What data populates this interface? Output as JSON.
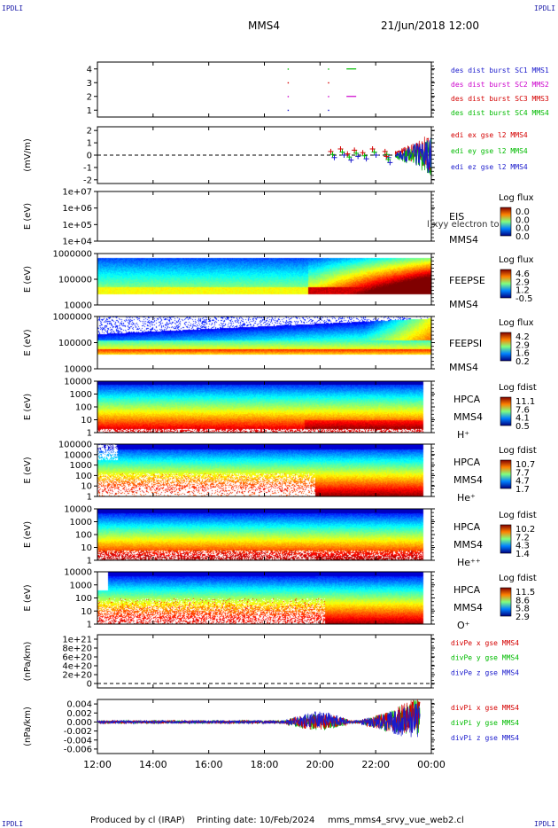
{
  "header": {
    "corner_label": "IPDLI",
    "title": "MMS4",
    "date": "21/Jun/2018 12:00"
  },
  "footer": {
    "produced": "Produced by cl (IRAP)",
    "printing": "Printing date: 10/Feb/2024",
    "file": "mms_mms4_srvy_vue_web2.cl"
  },
  "chart_data": {
    "type": "heatmap",
    "x_axis": {
      "range": [
        "12:00",
        "00:00"
      ],
      "ticks": [
        "12:00",
        "14:00",
        "16:00",
        "18:00",
        "20:00",
        "22:00",
        "00:00"
      ]
    },
    "panels": [
      {
        "id": "burst",
        "kind": "markers",
        "yticks": [
          "1",
          "2",
          "3",
          "4"
        ],
        "ylim": [
          0.5,
          4.5
        ],
        "ylabel": "",
        "legend": [
          {
            "text": "des dist burst SC1 MMS1",
            "color": "#1a1acc"
          },
          {
            "text": "des dist burst SC2 MMS2",
            "color": "#cc00cc"
          },
          {
            "text": "des dist burst SC3 MMS3",
            "color": "#d40000"
          },
          {
            "text": "des dist burst SC4 MMS4",
            "color": "#00bb00"
          }
        ],
        "points": [
          {
            "x": 18.85,
            "y": 1,
            "c": 0
          },
          {
            "x": 20.3,
            "y": 1,
            "c": 0
          },
          {
            "x": 18.85,
            "y": 2,
            "c": 1
          },
          {
            "x": 20.3,
            "y": 2,
            "c": 1
          },
          {
            "x": 18.85,
            "y": 3,
            "c": 2
          },
          {
            "x": 20.3,
            "y": 3,
            "c": 2
          },
          {
            "x": 18.85,
            "y": 4,
            "c": 3
          },
          {
            "x": 20.3,
            "y": 4,
            "c": 3
          }
        ],
        "segments": [
          {
            "x0": 20.95,
            "x1": 21.3,
            "y": 2,
            "c": 1
          },
          {
            "x0": 20.95,
            "x1": 21.3,
            "y": 4,
            "c": 3
          }
        ]
      },
      {
        "id": "edi",
        "kind": "field",
        "ylabel": "(mV/m)",
        "yticks": [
          "-2",
          "-1",
          "0",
          "1",
          "2"
        ],
        "ylim": [
          -2.3,
          2.3
        ],
        "legend": [
          {
            "text": "edi ex gse l2 MMS4",
            "color": "#d40000"
          },
          {
            "text": "edi ey gse l2 MMS4",
            "color": "#00bb00"
          },
          {
            "text": "edi ez gse l2 MMS4",
            "color": "#1a1acc"
          }
        ],
        "crosses": [
          {
            "x": 20.45,
            "y": 0.3
          },
          {
            "x": 20.8,
            "y": 0.5
          },
          {
            "x": 21.05,
            "y": 0.1
          },
          {
            "x": 21.3,
            "y": 0.4
          },
          {
            "x": 21.6,
            "y": 0.2
          },
          {
            "x": 21.95,
            "y": 0.5
          },
          {
            "x": 22.4,
            "y": 0.3
          },
          {
            "x": 22.45,
            "y": -0.1
          }
        ],
        "dashed_zero": true
      },
      {
        "id": "eis",
        "kind": "empty_spec",
        "ylabel": "E (eV)",
        "yticks": [
          "1e+04",
          "1e+05",
          "1e+06",
          "1e+07"
        ],
        "labels": [
          "EIS",
          "MMS4"
        ],
        "overlay": "l)xyy electron to",
        "cb_title": "Log flux",
        "cb_ticks": [
          "0.0",
          "0.0",
          "0.0",
          "0.0"
        ]
      },
      {
        "id": "feepse",
        "kind": "spectrogram",
        "ylabel": "E (eV)",
        "yticks": [
          "10000",
          "100000",
          "1000000"
        ],
        "labels": [
          "FEEPSE",
          "MMS4"
        ],
        "cb_title": "Log flux",
        "cb_ticks": [
          "4.6",
          "2.9",
          "1.2",
          "-0.5"
        ]
      },
      {
        "id": "feepsi",
        "kind": "spectrogram",
        "ylabel": "E (eV)",
        "yticks": [
          "10000",
          "100000",
          "1000000"
        ],
        "labels": [
          "FEEPSI",
          "MMS4"
        ],
        "cb_title": "Log flux",
        "cb_ticks": [
          "4.2",
          "2.9",
          "1.6",
          "0.2"
        ]
      },
      {
        "id": "hpca_h",
        "kind": "spectrogram",
        "ylabel": "E (eV)",
        "yticks": [
          "1",
          "10",
          "100",
          "1000",
          "10000"
        ],
        "labels": [
          "HPCA",
          "MMS4",
          "H⁺"
        ],
        "cb_title": "Log fdist",
        "cb_ticks": [
          "11.1",
          "7.6",
          "4.1",
          "0.5"
        ]
      },
      {
        "id": "hpca_he",
        "kind": "spectrogram",
        "ylabel": "E (eV)",
        "yticks": [
          "1",
          "10",
          "100",
          "1000",
          "10000",
          "100000"
        ],
        "labels": [
          "HPCA",
          "MMS4",
          "He⁺"
        ],
        "cb_title": "Log fdist",
        "cb_ticks": [
          "10.7",
          "7.7",
          "4.7",
          "1.7"
        ]
      },
      {
        "id": "hpca_he2",
        "kind": "spectrogram",
        "ylabel": "E (eV)",
        "yticks": [
          "1",
          "10",
          "100",
          "1000",
          "10000"
        ],
        "labels": [
          "HPCA",
          "MMS4",
          "He⁺⁺"
        ],
        "cb_title": "Log fdist",
        "cb_ticks": [
          "10.2",
          "7.2",
          "4.3",
          "1.4"
        ]
      },
      {
        "id": "hpca_o",
        "kind": "spectrogram",
        "ylabel": "E (eV)",
        "yticks": [
          "1",
          "10",
          "100",
          "1000",
          "10000"
        ],
        "labels": [
          "HPCA",
          "MMS4",
          "O⁺"
        ],
        "cb_title": "Log fdist",
        "cb_ticks": [
          "11.5",
          "8.6",
          "5.8",
          "2.9"
        ]
      },
      {
        "id": "divpe",
        "kind": "lines",
        "ylabel": "(nPa/km)",
        "yticks": [
          "0",
          "2e+20",
          "4e+20",
          "6e+20",
          "8e+20",
          "1e+21"
        ],
        "legend": [
          {
            "text": "divPe x gse MMS4",
            "color": "#d40000"
          },
          {
            "text": "divPe y gse MMS4",
            "color": "#00bb00"
          },
          {
            "text": "divPe z gse MMS4",
            "color": "#1a1acc"
          }
        ],
        "dashed_zero": true
      },
      {
        "id": "divpi",
        "kind": "lines",
        "ylabel": "(nPa/km)",
        "yticks": [
          "-0.006",
          "-0.004",
          "-0.002",
          "0.000",
          "0.002",
          "0.004"
        ],
        "ylim": [
          -0.007,
          0.005
        ],
        "legend": [
          {
            "text": "divPi x gse MMS4",
            "color": "#d40000"
          },
          {
            "text": "divPi y gse MMS4",
            "color": "#00bb00"
          },
          {
            "text": "divPi z gse MMS4",
            "color": "#1a1acc"
          }
        ]
      }
    ]
  }
}
